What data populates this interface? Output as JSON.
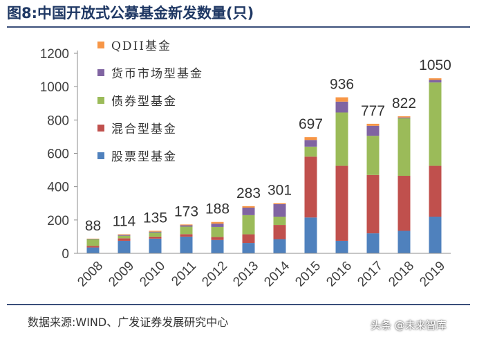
{
  "figure": {
    "title": "图8:中国开放式公募基金新发数量(只)",
    "source": "数据来源:WIND、广发证券发展研究中心",
    "watermark": "头条 @未来智库"
  },
  "chart_data": {
    "type": "bar",
    "stacked": true,
    "title": "中国开放式公募基金新发数量(只)",
    "xlabel": "",
    "ylabel": "",
    "ylim": [
      0,
      1200
    ],
    "yticks": [
      0,
      200,
      400,
      600,
      800,
      1000,
      1200
    ],
    "grid": false,
    "legend_position": "top-left",
    "categories": [
      "2008",
      "2009",
      "2010",
      "2011",
      "2012",
      "2013",
      "2014",
      "2015",
      "2016",
      "2017",
      "2018",
      "2019"
    ],
    "series": [
      {
        "name": "股票型基金",
        "color": "#4f81bd",
        "values": [
          35,
          75,
          88,
          100,
          80,
          62,
          85,
          215,
          75,
          120,
          135,
          220
        ]
      },
      {
        "name": "混合型基金",
        "color": "#c0504d",
        "values": [
          10,
          15,
          12,
          15,
          18,
          52,
          85,
          365,
          450,
          350,
          330,
          305
        ]
      },
      {
        "name": "债券型基金",
        "color": "#9bbb59",
        "values": [
          40,
          15,
          25,
          45,
          60,
          115,
          50,
          60,
          320,
          235,
          345,
          500
        ]
      },
      {
        "name": "货币市场型基金",
        "color": "#8064a2",
        "values": [
          2,
          5,
          5,
          8,
          20,
          45,
          75,
          40,
          65,
          60,
          5,
          15
        ]
      },
      {
        "name": "QDII基金",
        "color": "#f79646",
        "values": [
          1,
          4,
          5,
          5,
          10,
          9,
          6,
          17,
          26,
          12,
          7,
          10
        ]
      }
    ],
    "totals": [
      88,
      114,
      135,
      173,
      188,
      283,
      301,
      697,
      936,
      777,
      822,
      1050
    ]
  }
}
